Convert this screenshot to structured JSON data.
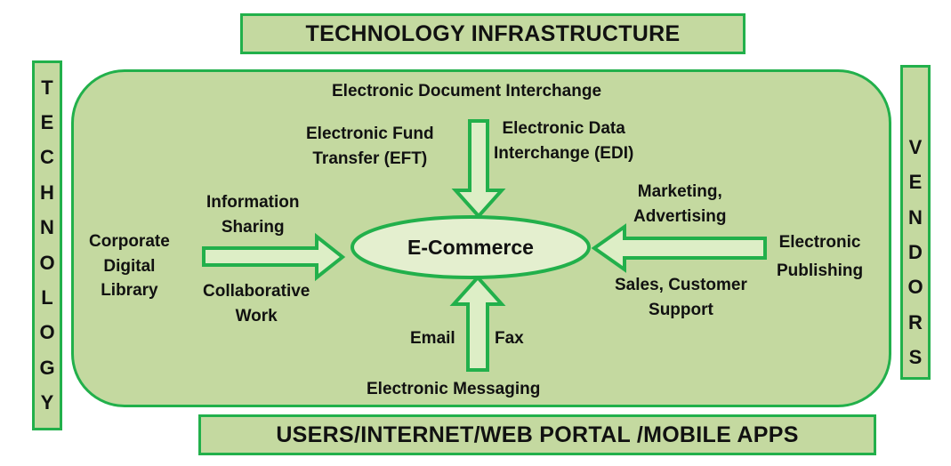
{
  "top_banner": "TECHNOLOGY  INFRASTRUCTURE",
  "bottom_banner": "USERS/INTERNET/WEB PORTAL /MOBILE APPS",
  "left_vertical": [
    "T",
    "E",
    "C",
    "H",
    "N",
    "O",
    "L",
    "O",
    "G",
    "Y"
  ],
  "right_vertical": [
    "V",
    "E",
    "N",
    "D",
    "O",
    "R",
    "S"
  ],
  "center": "E-Commerce",
  "labels": {
    "edi_doc": "Electronic Document Interchange",
    "eft_1": "Electronic Fund",
    "eft_2": "Transfer (EFT)",
    "edi_1": "Electronic Data",
    "edi_2": "Interchange (EDI)",
    "info_1": "Information",
    "info_2": "Sharing",
    "collab_1": "Collaborative",
    "collab_2": "Work",
    "corp_1": "Corporate",
    "corp_2": "Digital",
    "corp_3": "Library",
    "mkt_1": "Marketing,",
    "mkt_2": "Advertising",
    "epub_1": "Electronic",
    "epub_2": "Publishing",
    "sales_1": "Sales, Customer",
    "sales_2": "Support",
    "email": "Email",
    "fax": "Fax",
    "messaging": "Electronic Messaging"
  },
  "colors": {
    "box_fill": "#c4d9a0",
    "border": "#22b04b",
    "ellipse_fill": "#e4efcf",
    "arrow_fill": "#ddeec6"
  }
}
